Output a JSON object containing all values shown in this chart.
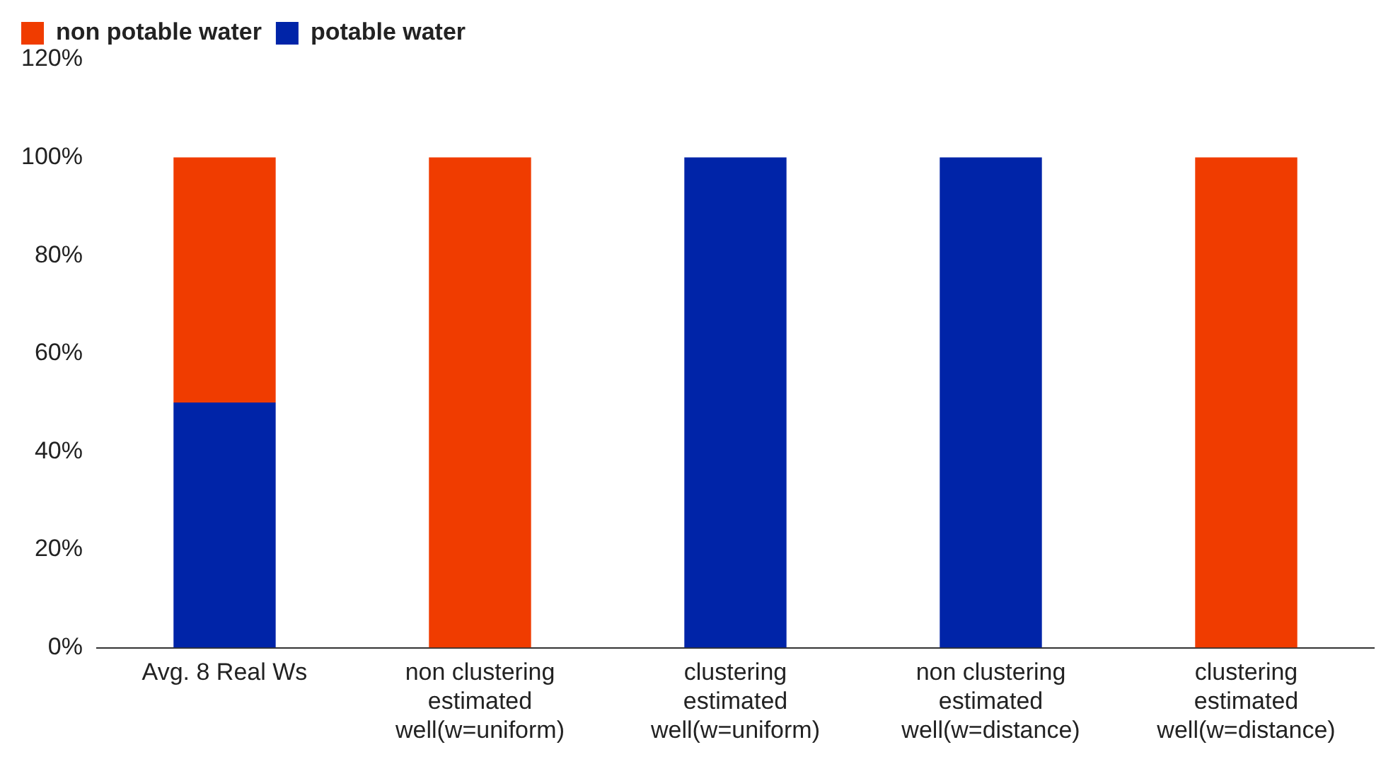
{
  "chart_data": {
    "type": "bar",
    "stacked": true,
    "categories": [
      "Avg. 8 Real Ws",
      "non clustering estimated well(w=uniform)",
      "clustering estimated well(w=uniform)",
      "non clustering estimated well(w=distance)",
      "clustering estimated well(w=distance)"
    ],
    "series": [
      {
        "name": "potable water",
        "color": "#0024a8",
        "values": [
          50,
          0,
          100,
          100,
          0
        ]
      },
      {
        "name": "non potable water",
        "color": "#f03c00",
        "values": [
          50,
          100,
          0,
          0,
          100
        ]
      }
    ],
    "ylim": [
      0,
      120
    ],
    "yticks": [
      {
        "value": 0,
        "label": "0%"
      },
      {
        "value": 20,
        "label": "20%"
      },
      {
        "value": 40,
        "label": "40%"
      },
      {
        "value": 60,
        "label": "60%"
      },
      {
        "value": 80,
        "label": "80%"
      },
      {
        "value": 100,
        "label": "100%"
      },
      {
        "value": 120,
        "label": "120%"
      }
    ],
    "grid": false,
    "legend": "top left"
  }
}
